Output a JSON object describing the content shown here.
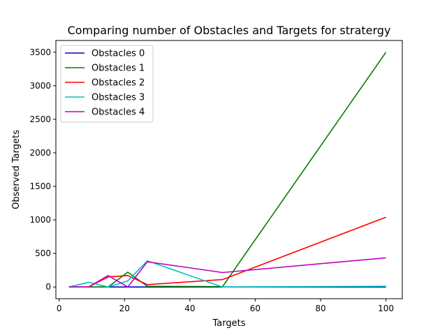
{
  "chart_data": {
    "type": "line",
    "title": "Comparing number of Obstacles and Targets for stratergy",
    "xlabel": "Targets",
    "ylabel": "Observed Targets",
    "xlim": [
      -1,
      105
    ],
    "ylim": [
      -175,
      3675
    ],
    "xticks": [
      0,
      20,
      40,
      60,
      80,
      100
    ],
    "yticks": [
      0,
      500,
      1000,
      1500,
      2000,
      2500,
      3000,
      3500
    ],
    "grid": false,
    "legend_position": "top-left",
    "series": [
      {
        "name": "Obstacles 0",
        "color": "#0000bf",
        "x": [
          3,
          9,
          15,
          21,
          27,
          50,
          100
        ],
        "values": [
          0,
          0,
          0,
          0,
          0,
          0,
          0
        ]
      },
      {
        "name": "Obstacles 1",
        "color": "#008000",
        "x": [
          3,
          9,
          15,
          21,
          27,
          50,
          100
        ],
        "values": [
          0,
          0,
          0,
          220,
          10,
          5,
          3500
        ]
      },
      {
        "name": "Obstacles 2",
        "color": "#ff0000",
        "x": [
          3,
          9,
          15,
          21,
          27,
          50,
          100
        ],
        "values": [
          0,
          0,
          150,
          170,
          35,
          110,
          1040
        ]
      },
      {
        "name": "Obstacles 3",
        "color": "#00bfbf",
        "x": [
          3,
          9,
          15,
          21,
          27,
          50,
          100
        ],
        "values": [
          0,
          70,
          0,
          90,
          390,
          0,
          10
        ]
      },
      {
        "name": "Obstacles 4",
        "color": "#bf00bf",
        "x": [
          3,
          9,
          15,
          21,
          27,
          50,
          100
        ],
        "values": [
          0,
          0,
          170,
          0,
          375,
          215,
          435
        ]
      }
    ]
  }
}
